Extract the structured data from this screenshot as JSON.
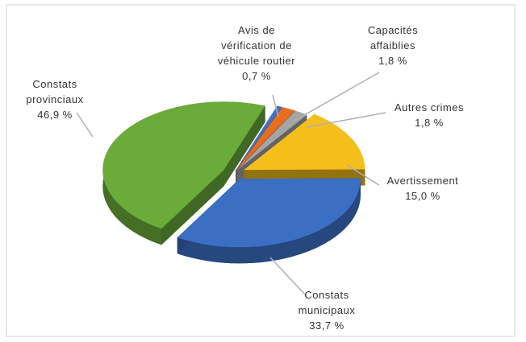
{
  "chart_data": {
    "type": "pie",
    "categories": [
      "Avis de vérification de véhicule routier",
      "Capacités affaiblies",
      "Autres crimes",
      "Avertissement",
      "Constats municipaux",
      "Constats provinciaux"
    ],
    "values": [
      0.7,
      1.8,
      1.8,
      15.0,
      33.7,
      46.9
    ],
    "value_labels": [
      "0,7 %",
      "1,8 %",
      "1,8 %",
      "15,0 %",
      "33,7 %",
      "46,9 %"
    ],
    "colors": [
      "#3f73c6",
      "#e96d1f",
      "#a5a5a5",
      "#f5bf1b",
      "#3a6fc4",
      "#6aab3a"
    ]
  }
}
